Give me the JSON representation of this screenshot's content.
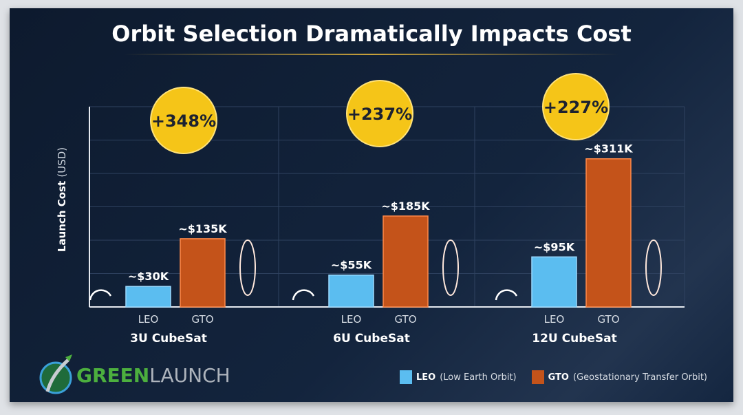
{
  "title": "Orbit Selection Dramatically Impacts Cost",
  "chart_data": {
    "type": "bar",
    "title": "Orbit Selection Dramatically Impacts Cost",
    "ylabel": "Launch Cost",
    "ylabel_unit": "(USD)",
    "ylim": [
      0,
      440
    ],
    "grid": true,
    "legend_position": "bottom-right",
    "groups": [
      {
        "name": "3U CubeSat",
        "bars": [
          {
            "label": "LEO",
            "value": 30,
            "text": "~$30K"
          },
          {
            "label": "GTO",
            "value": 135,
            "text": "~$135K"
          }
        ],
        "increase": "+348%"
      },
      {
        "name": "6U CubeSat",
        "bars": [
          {
            "label": "LEO",
            "value": 55,
            "text": "~$55K"
          },
          {
            "label": "GTO",
            "value": 185,
            "text": "~$185K"
          }
        ],
        "increase": "+237%"
      },
      {
        "name": "12U CubeSat",
        "bars": [
          {
            "label": "LEO",
            "value": 95,
            "text": "~$95K"
          },
          {
            "label": "GTO",
            "value": 311,
            "text": "~$311K"
          }
        ],
        "increase": "+227%"
      }
    ],
    "series_colors": {
      "LEO": "#5bbdf0",
      "GTO": "#c4531a"
    }
  },
  "legend": [
    {
      "key": "LEO",
      "desc": "(Low Earth Orbit)",
      "color": "#5bbdf0"
    },
    {
      "key": "GTO",
      "desc": "(Geostationary Transfer Orbit)",
      "color": "#c4531a"
    }
  ],
  "logo": {
    "bold": "GREEN",
    "light": "LAUNCH"
  },
  "badge_color": "#f5c518"
}
